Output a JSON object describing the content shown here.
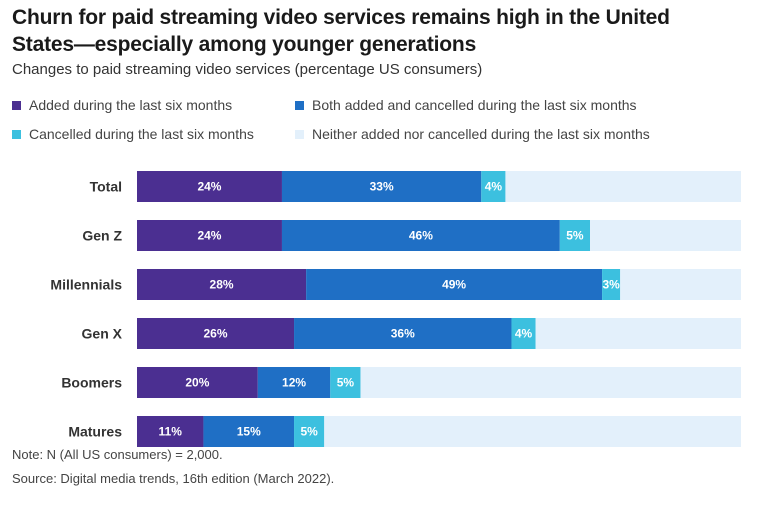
{
  "title": "Churn for paid streaming video services remains high in the United States—especially among younger generations",
  "subtitle": "Changes to paid streaming video services (percentage US consumers)",
  "legend": [
    {
      "label": "Added during the last six months",
      "color": "#4b2f91"
    },
    {
      "label": "Both added and cancelled during the last six months",
      "color": "#1f6fc5"
    },
    {
      "label": "Cancelled during the last six months",
      "color": "#3cc0df"
    },
    {
      "label": "Neither added nor cancelled during the last six months",
      "color": "#e3f0fb"
    }
  ],
  "chart_data": {
    "type": "bar",
    "orientation": "horizontal",
    "stacked": true,
    "categories": [
      "Total",
      "Gen Z",
      "Millennials",
      "Gen X",
      "Boomers",
      "Matures"
    ],
    "series": [
      {
        "name": "Added during the last six months",
        "values": [
          24,
          24,
          28,
          26,
          20,
          11
        ],
        "labels": [
          "24%",
          "24%",
          "28%",
          "26%",
          "20%",
          "11%"
        ],
        "color": "#4b2f91"
      },
      {
        "name": "Both added and cancelled during the last six months",
        "values": [
          33,
          46,
          49,
          36,
          12,
          15
        ],
        "labels": [
          "33%",
          "46%",
          "49%",
          "36%",
          "12%",
          "15%"
        ],
        "color": "#1f6fc5"
      },
      {
        "name": "Cancelled during the last six months",
        "values": [
          4,
          5,
          3,
          4,
          5,
          5
        ],
        "labels": [
          "4%",
          "5%",
          "3%",
          "4%",
          "5%",
          "5%"
        ],
        "color": "#3cc0df"
      },
      {
        "name": "Neither added nor cancelled during the last six months",
        "values": [
          39,
          25,
          20,
          34,
          63,
          69
        ],
        "color": "#e3f0fb"
      }
    ],
    "xlim": [
      0,
      100
    ],
    "grid": false,
    "legend_position": "top"
  },
  "footer": {
    "note": "Note: N (All US consumers) = 2,000.",
    "source": "Source: Digital media trends, 16th edition (March 2022)."
  }
}
